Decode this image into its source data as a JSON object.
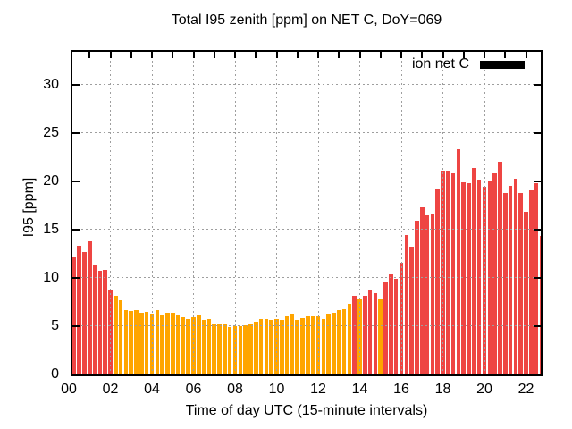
{
  "chart_data": {
    "type": "bar",
    "title": "Total I95 zenith [ppm] on NET C, DoY=069",
    "xlabel": "Time of day UTC (15-minute intervals)",
    "ylabel": "I95 [ppm]",
    "legend": {
      "label": "ion net C",
      "swatch_color": "#000000",
      "position": "top-right-inside"
    },
    "ylim": [
      0,
      33.4
    ],
    "yticks": [
      0,
      5,
      10,
      15,
      20,
      25,
      30
    ],
    "xtick_hours": [
      0,
      2,
      4,
      6,
      8,
      10,
      12,
      14,
      16,
      18,
      20,
      22
    ],
    "xtick_labels": [
      "00",
      "02",
      "04",
      "06",
      "08",
      "10",
      "12",
      "14",
      "16",
      "18",
      "20",
      "22"
    ],
    "minor_xticks_every_hours": 1,
    "grid": {
      "show": true,
      "style": "dotted",
      "color": "#9e9e9e",
      "drawn_over_bars": true
    },
    "interval_minutes": 15,
    "x_times": [
      "00:15",
      "00:30",
      "00:45",
      "01:00",
      "01:15",
      "01:30",
      "01:45",
      "02:00",
      "02:15",
      "02:30",
      "02:45",
      "03:00",
      "03:15",
      "03:30",
      "03:45",
      "04:00",
      "04:15",
      "04:30",
      "04:45",
      "05:00",
      "05:15",
      "05:30",
      "05:45",
      "06:00",
      "06:15",
      "06:30",
      "06:45",
      "07:00",
      "07:15",
      "07:30",
      "07:45",
      "08:00",
      "08:15",
      "08:30",
      "08:45",
      "09:00",
      "09:15",
      "09:30",
      "09:45",
      "10:00",
      "10:15",
      "10:30",
      "10:45",
      "11:00",
      "11:15",
      "11:30",
      "11:45",
      "12:00",
      "12:15",
      "12:30",
      "12:45",
      "13:00",
      "13:15",
      "13:30",
      "13:45",
      "14:00",
      "14:15",
      "14:30",
      "14:45",
      "15:00",
      "15:15",
      "15:30",
      "15:45",
      "16:00",
      "16:15",
      "16:30",
      "16:45",
      "17:00",
      "17:15",
      "17:30",
      "17:45",
      "18:00",
      "18:15",
      "18:30",
      "18:45",
      "19:00",
      "19:15",
      "19:30",
      "19:45",
      "20:00",
      "20:15",
      "20:30",
      "20:45",
      "21:00",
      "21:15",
      "21:30",
      "21:45",
      "22:00",
      "22:15",
      "22:30",
      "22:45"
    ],
    "values": [
      12.1,
      13.3,
      12.7,
      13.8,
      11.3,
      10.7,
      10.8,
      8.8,
      8.1,
      7.7,
      6.7,
      6.6,
      6.7,
      6.4,
      6.5,
      6.3,
      6.7,
      6.1,
      6.4,
      6.4,
      6.1,
      5.9,
      5.7,
      5.9,
      6.1,
      5.6,
      5.7,
      5.3,
      5.2,
      5.3,
      4.9,
      5.0,
      5.0,
      5.1,
      5.2,
      5.5,
      5.7,
      5.7,
      5.6,
      5.7,
      5.6,
      6.0,
      6.3,
      5.6,
      5.8,
      6.0,
      6.0,
      6.0,
      5.7,
      6.3,
      6.4,
      6.7,
      6.8,
      7.3,
      8.1,
      7.9,
      8.1,
      8.8,
      8.4,
      7.9,
      9.5,
      10.4,
      9.9,
      11.6,
      14.4,
      13.2,
      15.9,
      17.3,
      16.5,
      16.6,
      19.2,
      21.1,
      21.1,
      20.8,
      23.3,
      19.9,
      19.8,
      21.4,
      20.2,
      19.4,
      20.1,
      20.8,
      22.0,
      18.8,
      19.5,
      20.3,
      18.8,
      16.8,
      19.1,
      19.8,
      14.3
    ],
    "bar_color_codes": "rrrrrrrroooooooooooooooooooooooooooooooooooooooooooooororrrorrrrrrrrrrrrrrrrrrrrrrrrrrrrrrr",
    "palette": {
      "r": "#ee4543",
      "o": "#ffa500"
    },
    "frame_color": "#000000",
    "background": "#ffffff"
  }
}
